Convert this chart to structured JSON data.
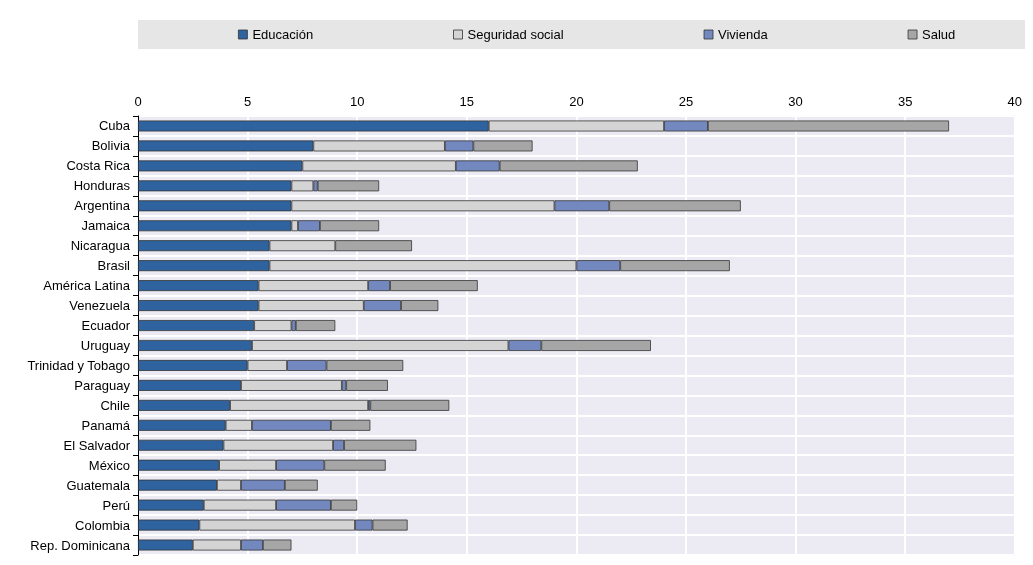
{
  "chart_data": {
    "type": "bar",
    "orientation": "horizontal",
    "stacked": true,
    "categories": [
      "Cuba",
      "Bolivia",
      "Costa Rica",
      "Honduras",
      "Argentina",
      "Jamaica",
      "Nicaragua",
      "Brasil",
      "América Latina",
      "Venezuela",
      "Ecuador",
      "Uruguay",
      "Trinidad y Tobago",
      "Paraguay",
      "Chile",
      "Panamá",
      "El Salvador",
      "México",
      "Guatemala",
      "Perú",
      "Colombia",
      "Rep. Dominicana"
    ],
    "series": [
      {
        "name": "Educación",
        "color": "#2e63a0",
        "values": [
          16,
          8,
          7.5,
          7,
          7,
          7,
          6,
          6,
          5.5,
          5.5,
          5.3,
          5.2,
          5,
          4.7,
          4.2,
          4,
          3.9,
          3.7,
          3.6,
          3,
          2.8,
          2.5
        ]
      },
      {
        "name": "Seguridad social",
        "color": "#d4d4d4",
        "values": [
          8,
          6,
          7,
          1,
          12,
          0.3,
          3,
          14,
          5,
          4.8,
          1.7,
          11.7,
          1.8,
          4.6,
          6.3,
          1.2,
          5,
          2.6,
          1.1,
          3.3,
          7.1,
          2.2
        ]
      },
      {
        "name": "Vivienda",
        "color": "#7388bf",
        "values": [
          2,
          1.3,
          2,
          0.2,
          2.5,
          1,
          null,
          2,
          1,
          1.7,
          0.2,
          1.5,
          1.8,
          0.2,
          0.1,
          3.6,
          0.5,
          2.2,
          2,
          2.5,
          0.8,
          1
        ]
      },
      {
        "name": "Salud",
        "color": "#a5a6a5",
        "values": [
          11,
          2.7,
          6.3,
          2.8,
          6,
          2.7,
          3.5,
          5,
          4,
          1.7,
          1.8,
          5,
          3.5,
          1.9,
          3.6,
          1.8,
          3.3,
          2.8,
          1.5,
          1.2,
          1.6,
          1.3
        ]
      }
    ],
    "xlim": [
      0,
      40
    ],
    "xticks": [
      0,
      5,
      10,
      15,
      20,
      25,
      30,
      35,
      40
    ],
    "grid": true,
    "legend": "top"
  }
}
